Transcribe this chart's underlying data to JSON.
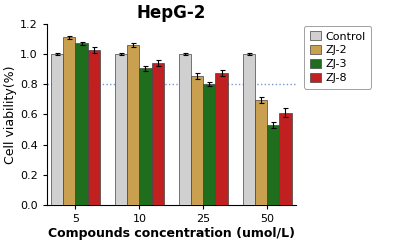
{
  "title": "HepG-2",
  "xlabel": "Compounds concentration (umol/L)",
  "ylabel": "Cell viability(%)",
  "concentrations": [
    5,
    10,
    25,
    50
  ],
  "groups": [
    "Control",
    "ZJ-2",
    "ZJ-3",
    "ZJ-8"
  ],
  "colors": [
    "#d0d0d0",
    "#c8a050",
    "#1e6e1e",
    "#c02020"
  ],
  "bar_values": [
    [
      1.0,
      1.0,
      1.0,
      1.0
    ],
    [
      1.11,
      1.06,
      0.855,
      0.695
    ],
    [
      1.07,
      0.905,
      0.8,
      0.53
    ],
    [
      1.025,
      0.94,
      0.875,
      0.61
    ]
  ],
  "bar_errors": [
    [
      0.008,
      0.008,
      0.008,
      0.008
    ],
    [
      0.012,
      0.012,
      0.018,
      0.022
    ],
    [
      0.012,
      0.018,
      0.012,
      0.018
    ],
    [
      0.018,
      0.018,
      0.018,
      0.03
    ]
  ],
  "hline_y": 0.8,
  "hline_color": "#7799cc",
  "ylim": [
    0.0,
    1.2
  ],
  "yticks": [
    0.0,
    0.2,
    0.4,
    0.6,
    0.8,
    1.0,
    1.2
  ],
  "background_color": "#ffffff",
  "bar_width": 0.19,
  "title_fontsize": 12,
  "axis_fontsize": 9,
  "tick_fontsize": 8,
  "legend_fontsize": 8
}
